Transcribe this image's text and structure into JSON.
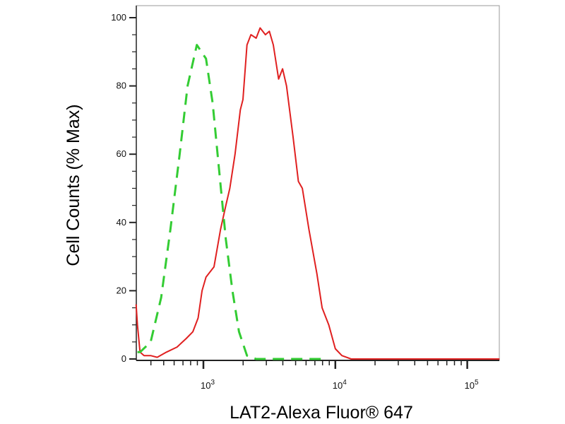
{
  "chart_data": {
    "type": "line",
    "title": "",
    "xlabel": "LAT2-Alexa Fluor® 647",
    "ylabel": "Cell Counts (% Max)",
    "xscale": "log",
    "xlim": [
      310,
      175000
    ],
    "ylim": [
      0,
      105
    ],
    "grid": false,
    "legend": "none",
    "x_ticks": [
      {
        "value": 1000,
        "base": "10",
        "exp": "3"
      },
      {
        "value": 10000,
        "base": "10",
        "exp": "4"
      },
      {
        "value": 100000,
        "base": "10",
        "exp": "5"
      }
    ],
    "y_ticks": [
      "0",
      "20",
      "40",
      "60",
      "80",
      "100"
    ],
    "series": [
      {
        "color": "#e02020",
        "style": "solid",
        "log10_x": [
          2.49,
          2.5,
          2.52,
          2.55,
          2.6,
          2.65,
          2.72,
          2.8,
          2.87,
          2.92,
          2.96,
          2.99,
          3.02,
          3.08,
          3.13,
          3.17,
          3.2,
          3.24,
          3.28,
          3.3,
          3.33,
          3.36,
          3.4,
          3.43,
          3.47,
          3.5,
          3.53,
          3.57,
          3.6,
          3.63,
          3.68,
          3.72,
          3.75,
          3.8,
          3.86,
          3.9,
          3.95,
          4.0,
          4.05,
          4.12,
          5.245
        ],
        "y": [
          16,
          10,
          2,
          1,
          1,
          0.5,
          2,
          3.5,
          6,
          8,
          12,
          20,
          24,
          27,
          38,
          45,
          50,
          60,
          73,
          76,
          92,
          95,
          94,
          97,
          95,
          96,
          92,
          82,
          85,
          80,
          65,
          52,
          50,
          38,
          25,
          15,
          10,
          3,
          1,
          0,
          0
        ]
      },
      {
        "color": "#33cc33",
        "style": "dashed",
        "log10_x": [
          2.5,
          2.52,
          2.6,
          2.68,
          2.75,
          2.82,
          2.88,
          2.95,
          3.02,
          3.07,
          3.12,
          3.17,
          3.22,
          3.27,
          3.33,
          3.4,
          3.6,
          3.9
        ],
        "y": [
          2,
          2,
          5,
          18,
          38,
          60,
          80,
          92,
          88,
          75,
          55,
          35,
          20,
          8,
          1,
          0,
          0,
          0
        ]
      }
    ]
  }
}
